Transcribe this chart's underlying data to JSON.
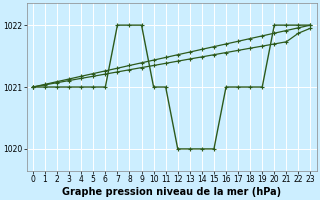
{
  "background_color": "#cceeff",
  "grid_color": "#ffffff",
  "line_color": "#2d5a1b",
  "marker_color": "#2d5a1b",
  "xlabel": "Graphe pression niveau de la mer (hPa)",
  "xlabel_fontsize": 7,
  "xlabel_bold": true,
  "ylim": [
    1019.65,
    1022.35
  ],
  "xlim": [
    -0.5,
    23.5
  ],
  "yticks": [
    1020,
    1021,
    1022
  ],
  "xticks": [
    0,
    1,
    2,
    3,
    4,
    5,
    6,
    7,
    8,
    9,
    10,
    11,
    12,
    13,
    14,
    15,
    16,
    17,
    18,
    19,
    20,
    21,
    22,
    23
  ],
  "tick_fontsize": 5.5,
  "series": [
    {
      "x": [
        0,
        1,
        2,
        3,
        4,
        5,
        6,
        7,
        8,
        9,
        10,
        11,
        12,
        13,
        14,
        15,
        16,
        17,
        18,
        19,
        20,
        21,
        22,
        23
      ],
      "y": [
        1021,
        1021,
        1021,
        1021,
        1021,
        1021,
        1021,
        1022,
        1022,
        1022,
        1021,
        1021,
        1020,
        1020,
        1020,
        1020,
        1021,
        1021,
        1021,
        1021,
        1022,
        1022,
        1022,
        1022
      ]
    },
    {
      "x": [
        0,
        1,
        2,
        3,
        4,
        5,
        6,
        7,
        8,
        9,
        10,
        11,
        12,
        13,
        14,
        15,
        16,
        17,
        18,
        19,
        20,
        21,
        22,
        23
      ],
      "y": [
        1021.0,
        1021.043,
        1021.087,
        1021.13,
        1021.174,
        1021.217,
        1021.261,
        1021.304,
        1021.348,
        1021.391,
        1021.435,
        1021.478,
        1021.522,
        1021.565,
        1021.609,
        1021.652,
        1021.696,
        1021.739,
        1021.783,
        1021.826,
        1021.87,
        1021.913,
        1021.957,
        1022.0
      ]
    },
    {
      "x": [
        0,
        1,
        2,
        3,
        4,
        5,
        6,
        7,
        8,
        9,
        10,
        11,
        12,
        13,
        14,
        15,
        16,
        17,
        18,
        19,
        20,
        21,
        22,
        23
      ],
      "y": [
        1021.0,
        1021.035,
        1021.07,
        1021.105,
        1021.14,
        1021.174,
        1021.209,
        1021.244,
        1021.279,
        1021.314,
        1021.348,
        1021.383,
        1021.418,
        1021.453,
        1021.487,
        1021.522,
        1021.557,
        1021.592,
        1021.627,
        1021.661,
        1021.696,
        1021.731,
        1021.87,
        1021.95
      ]
    }
  ]
}
